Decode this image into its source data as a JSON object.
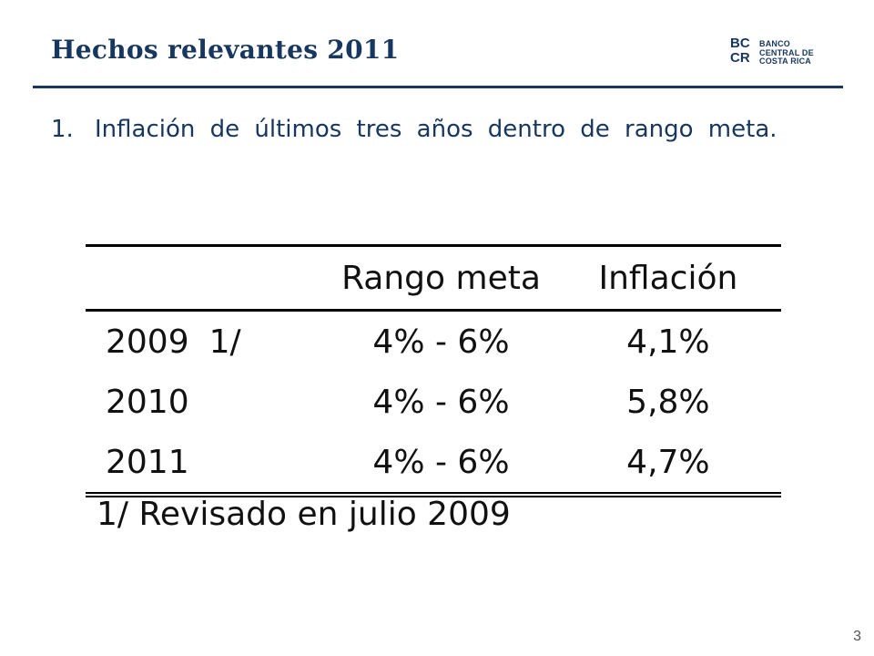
{
  "slide": {
    "title": "Hechos relevantes 2011",
    "logo": {
      "monogram_top": "BC",
      "monogram_bottom": "CR",
      "line1": "BANCO",
      "line2": "CENTRAL DE",
      "line3": "COSTA RICA"
    },
    "bullet": {
      "number": "1.",
      "text": "Inflación de últimos tres años dentro de rango meta."
    },
    "table": {
      "headers": [
        "",
        "Rango meta",
        "Inflación"
      ],
      "rows": [
        {
          "year": "2009",
          "note": "1/",
          "range": "4% - 6%",
          "inflation": "4,1%"
        },
        {
          "year": "2010",
          "note": "",
          "range": "4% - 6%",
          "inflation": "5,8%"
        },
        {
          "year": "2011",
          "note": "",
          "range": "4% - 6%",
          "inflation": "4,7%"
        }
      ]
    },
    "footnote": "1/ Revisado en julio 2009",
    "page_number": "3"
  }
}
